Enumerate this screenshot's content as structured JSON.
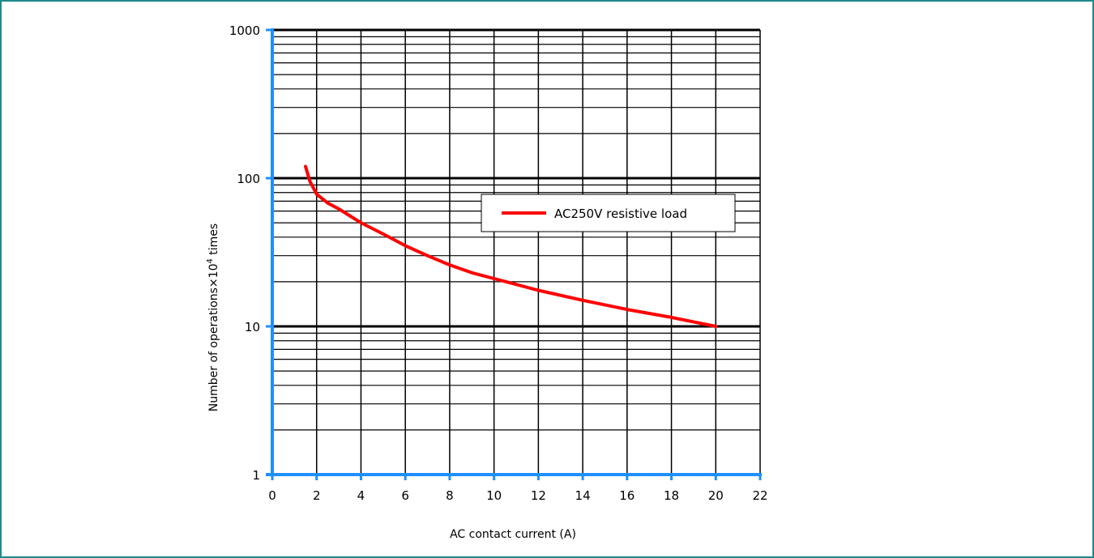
{
  "chart_data": {
    "type": "line",
    "title": "",
    "xlabel": "AC contact current (A)",
    "ylabel_prefix": "Number of operations×10",
    "ylabel_sup": "4",
    "ylabel_suffix": " times",
    "xlim": [
      0,
      22
    ],
    "ylim": [
      1,
      1000
    ],
    "yscale": "log",
    "grid": true,
    "x_ticks": [
      "0",
      "2",
      "4",
      "6",
      "8",
      "10",
      "12",
      "14",
      "16",
      "18",
      "20",
      "22"
    ],
    "y_ticks": [
      "1",
      "10",
      "100",
      "1000"
    ],
    "legend_position": "top-right",
    "series": [
      {
        "name": "AC250V resistive load",
        "color": "#ff0000",
        "x": [
          1.5,
          1.7,
          2.0,
          2.5,
          3.0,
          4.0,
          5.0,
          6.0,
          7.0,
          8.0,
          9.0,
          10.0,
          12.0,
          14.0,
          16.0,
          18.0,
          20.0
        ],
        "y": [
          120,
          95,
          78,
          68,
          62,
          50,
          42,
          35,
          30,
          26,
          23,
          21,
          17.5,
          15,
          13,
          11.5,
          10
        ]
      }
    ]
  },
  "colors": {
    "axis": "#1e90ff",
    "grid": "#000000",
    "frame": "#1e8a8a"
  }
}
